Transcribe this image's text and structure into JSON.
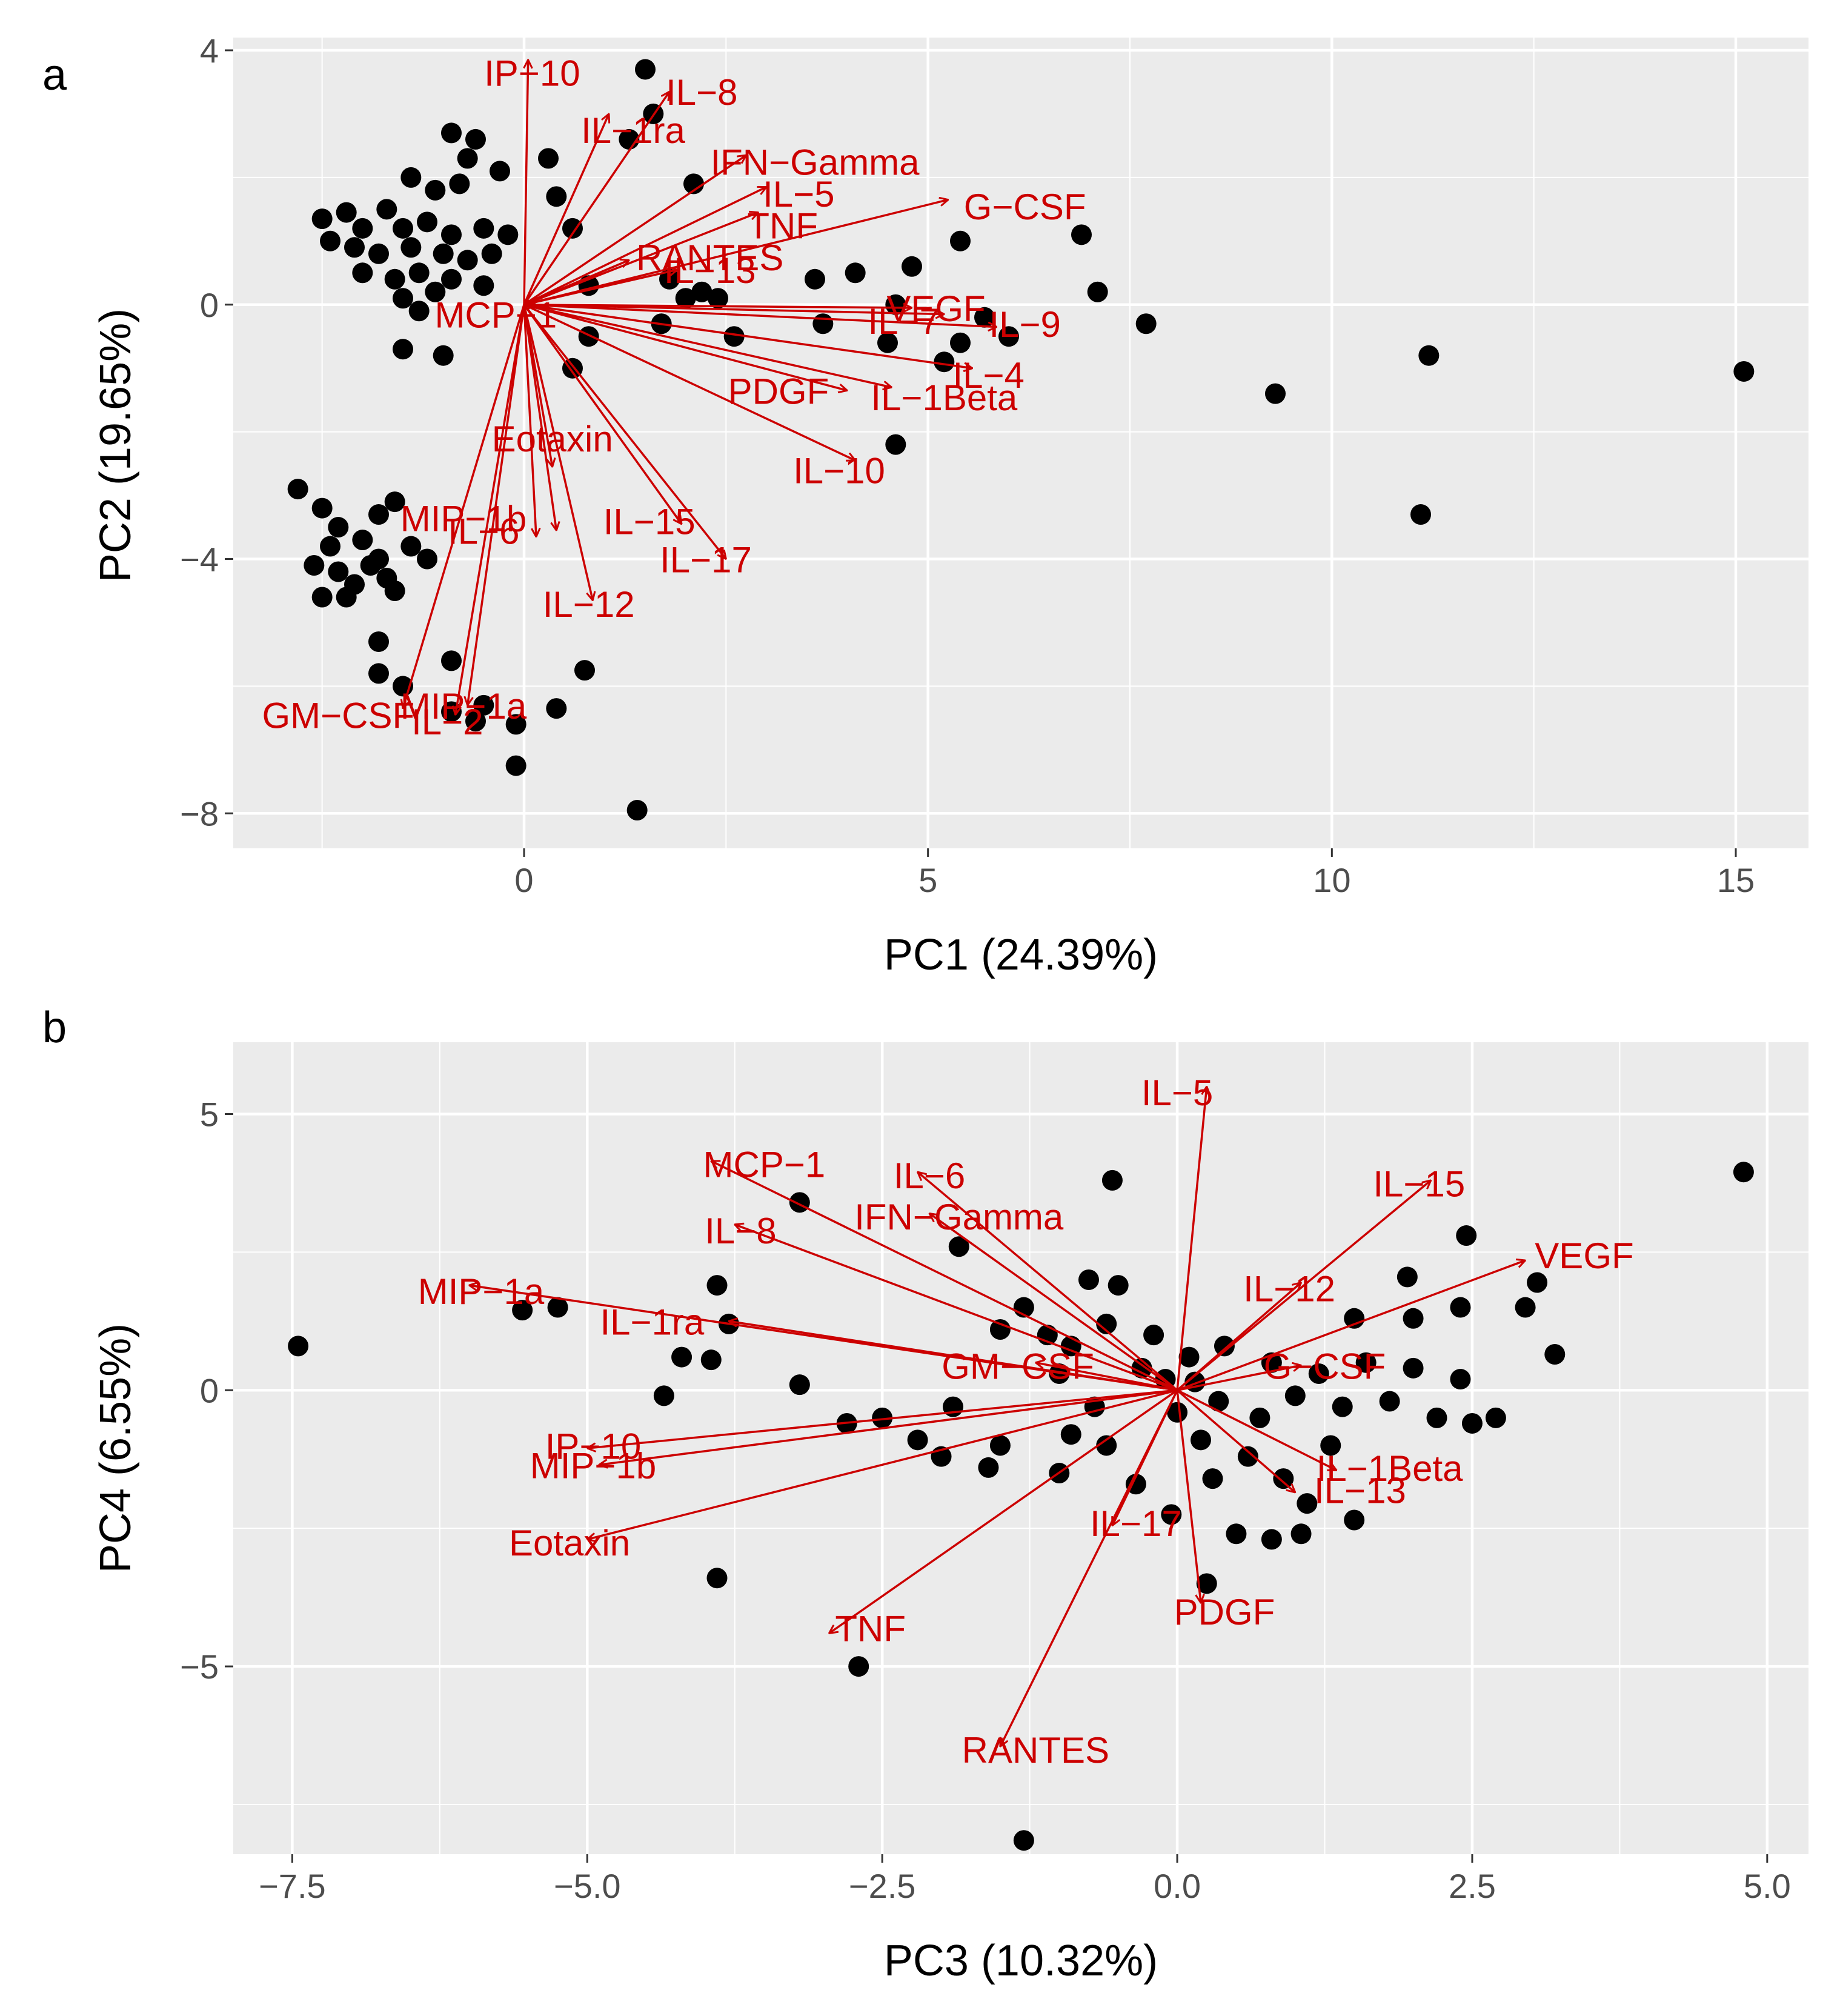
{
  "chart_data": [
    {
      "panel_label": "a",
      "type": "scatter",
      "subtype": "biplot",
      "xlabel": "PC1 (24.39%)",
      "ylabel": "PC2 (19.65%)",
      "xlim": [
        -3.6,
        15.9
      ],
      "ylim": [
        -8.55,
        4.2
      ],
      "xticks": [
        0,
        5,
        10,
        15
      ],
      "yticks": [
        -8,
        -4,
        0,
        4
      ],
      "xtick_labels": [
        "0",
        "5",
        "10",
        "15"
      ],
      "ytick_labels": [
        "−8",
        "−4",
        "0",
        "4"
      ],
      "grid": true,
      "loadings_origin": [
        0,
        0
      ],
      "points": [
        [
          1.5,
          3.7
        ],
        [
          1.6,
          3.0
        ],
        [
          1.3,
          2.6
        ],
        [
          -0.9,
          2.7
        ],
        [
          -0.6,
          2.6
        ],
        [
          -0.7,
          2.3
        ],
        [
          0.3,
          2.3
        ],
        [
          -0.3,
          2.1
        ],
        [
          2.1,
          1.9
        ],
        [
          -1.4,
          2.0
        ],
        [
          -1.1,
          1.8
        ],
        [
          -0.8,
          1.9
        ],
        [
          0.4,
          1.7
        ],
        [
          -2.5,
          1.35
        ],
        [
          -2.2,
          1.45
        ],
        [
          -2.0,
          1.2
        ],
        [
          -1.7,
          1.5
        ],
        [
          -1.5,
          1.2
        ],
        [
          -1.2,
          1.3
        ],
        [
          -0.9,
          1.1
        ],
        [
          -0.5,
          1.2
        ],
        [
          -0.2,
          1.1
        ],
        [
          0.6,
          1.2
        ],
        [
          -2.4,
          1.0
        ],
        [
          -2.1,
          0.9
        ],
        [
          -1.8,
          0.8
        ],
        [
          -1.4,
          0.9
        ],
        [
          -1.0,
          0.8
        ],
        [
          -0.7,
          0.7
        ],
        [
          -0.4,
          0.8
        ],
        [
          -2.0,
          0.5
        ],
        [
          -1.6,
          0.4
        ],
        [
          -1.3,
          0.5
        ],
        [
          -0.9,
          0.4
        ],
        [
          -0.5,
          0.3
        ],
        [
          -1.5,
          0.1
        ],
        [
          -1.1,
          0.2
        ],
        [
          -1.3,
          -0.1
        ],
        [
          0.8,
          0.3
        ],
        [
          1.8,
          0.4
        ],
        [
          2.2,
          0.2
        ],
        [
          3.6,
          0.4
        ],
        [
          4.1,
          0.5
        ],
        [
          4.8,
          0.6
        ],
        [
          5.4,
          1.0
        ],
        [
          6.9,
          1.1
        ],
        [
          7.1,
          0.2
        ],
        [
          7.7,
          -0.3
        ],
        [
          2.0,
          0.1
        ],
        [
          2.4,
          0.1
        ],
        [
          4.6,
          0.0
        ],
        [
          5.7,
          -0.2
        ],
        [
          2.6,
          -0.5
        ],
        [
          3.7,
          -0.3
        ],
        [
          4.5,
          -0.6
        ],
        [
          5.4,
          -0.6
        ],
        [
          6.0,
          -0.5
        ],
        [
          5.2,
          -0.9
        ],
        [
          1.7,
          -0.3
        ],
        [
          4.6,
          -2.2
        ],
        [
          -1.5,
          -0.7
        ],
        [
          -1.0,
          -0.8
        ],
        [
          0.8,
          -0.5
        ],
        [
          0.6,
          -1.0
        ],
        [
          11.2,
          -0.8
        ],
        [
          9.3,
          -1.4
        ],
        [
          15.1,
          -1.05
        ],
        [
          11.1,
          -3.3
        ],
        [
          -2.8,
          -2.9
        ],
        [
          -2.5,
          -3.2
        ],
        [
          -2.3,
          -3.5
        ],
        [
          -1.8,
          -3.3
        ],
        [
          -1.6,
          -3.1
        ],
        [
          -2.4,
          -3.8
        ],
        [
          -2.0,
          -3.7
        ],
        [
          -1.8,
          -4.0
        ],
        [
          -1.4,
          -3.8
        ],
        [
          -1.2,
          -4.0
        ],
        [
          -2.6,
          -4.1
        ],
        [
          -2.3,
          -4.2
        ],
        [
          -1.9,
          -4.1
        ],
        [
          -1.7,
          -4.3
        ],
        [
          -1.6,
          -4.5
        ],
        [
          -2.5,
          -4.6
        ],
        [
          -2.2,
          -4.6
        ],
        [
          -2.1,
          -4.4
        ],
        [
          -1.8,
          -5.3
        ],
        [
          -0.9,
          -5.6
        ],
        [
          -1.8,
          -5.8
        ],
        [
          -1.5,
          -6.0
        ],
        [
          0.75,
          -5.75
        ],
        [
          -0.5,
          -6.3
        ],
        [
          -0.6,
          -6.55
        ],
        [
          -0.9,
          -6.4
        ],
        [
          0.4,
          -6.35
        ],
        [
          -0.1,
          -6.6
        ],
        [
          -0.1,
          -7.25
        ],
        [
          1.4,
          -7.95
        ]
      ],
      "loadings": [
        {
          "label": "IP−10",
          "x": 0.05,
          "y": 3.85
        },
        {
          "label": "IL−8",
          "x": 1.8,
          "y": 3.35
        },
        {
          "label": "IL−1ra",
          "x": 1.05,
          "y": 3.0
        },
        {
          "label": "IFN−Gamma",
          "x": 2.75,
          "y": 2.35
        },
        {
          "label": "IL−5",
          "x": 3.0,
          "y": 1.85
        },
        {
          "label": "G−CSF",
          "x": 5.25,
          "y": 1.65
        },
        {
          "label": "TNF",
          "x": 2.9,
          "y": 1.45
        },
        {
          "label": "RANTES",
          "x": 1.3,
          "y": 0.7
        },
        {
          "label": "IL−13",
          "x": 1.9,
          "y": 0.55
        },
        {
          "label": "MCP−1",
          "x": 0.15,
          "y": 0.0
        },
        {
          "label": "VEGF",
          "x": 4.8,
          "y": -0.05
        },
        {
          "label": "IL−7",
          "x": 5.2,
          "y": -0.15
        },
        {
          "label": "IL−9",
          "x": 5.85,
          "y": -0.35
        },
        {
          "label": "IL−4",
          "x": 5.55,
          "y": -1.0
        },
        {
          "label": "IL−1Beta",
          "x": 4.55,
          "y": -1.3
        },
        {
          "label": "PDGF",
          "x": 4.0,
          "y": -1.35
        },
        {
          "label": "IL−10",
          "x": 4.1,
          "y": -2.45
        },
        {
          "label": "Eotaxin",
          "x": 0.35,
          "y": -2.55
        },
        {
          "label": "MIP−1b",
          "x": 0.4,
          "y": -3.55
        },
        {
          "label": "IL−6",
          "x": 0.15,
          "y": -3.65
        },
        {
          "label": "IL−15",
          "x": 1.95,
          "y": -3.45
        },
        {
          "label": "IL−17",
          "x": 2.5,
          "y": -4.0
        },
        {
          "label": "IL−12",
          "x": 0.85,
          "y": -4.65
        },
        {
          "label": "GM−CSF",
          "x": -1.5,
          "y": -6.35
        },
        {
          "label": "MIP−1a",
          "x": -0.7,
          "y": -6.3
        },
        {
          "label": "IL−2",
          "x": -0.85,
          "y": -6.45
        }
      ],
      "loading_label_positions": [
        [
          0.1,
          3.65
        ],
        [
          2.2,
          3.35
        ],
        [
          1.35,
          2.75
        ],
        [
          3.6,
          2.25
        ],
        [
          3.4,
          1.75
        ],
        [
          6.2,
          1.55
        ],
        [
          3.2,
          1.25
        ],
        [
          2.3,
          0.75
        ],
        [
          2.3,
          0.55
        ],
        [
          -0.35,
          -0.15
        ],
        [
          5.1,
          -0.05
        ],
        [
          4.7,
          -0.25
        ],
        [
          6.2,
          -0.3
        ],
        [
          5.75,
          -1.1
        ],
        [
          5.2,
          -1.45
        ],
        [
          3.15,
          -1.35
        ],
        [
          3.9,
          -2.6
        ],
        [
          0.35,
          -2.1
        ],
        [
          -0.75,
          -3.35
        ],
        [
          -0.5,
          -3.55
        ],
        [
          1.55,
          -3.4
        ],
        [
          2.25,
          -4.0
        ],
        [
          0.8,
          -4.7
        ],
        [
          -2.3,
          -6.45
        ],
        [
          -0.75,
          -6.3
        ],
        [
          -0.95,
          -6.55
        ]
      ]
    },
    {
      "panel_label": "b",
      "type": "scatter",
      "subtype": "biplot",
      "xlabel": "PC3 (10.32%)",
      "ylabel": "PC4 (6.55%)",
      "xlim": [
        -8.0,
        5.35
      ],
      "ylim": [
        -8.4,
        6.3
      ],
      "xticks": [
        -7.5,
        -5.0,
        -2.5,
        0.0,
        2.5,
        5.0
      ],
      "yticks": [
        -5,
        0,
        5
      ],
      "xtick_labels": [
        "−7.5",
        "−5.0",
        "−2.5",
        "0.0",
        "2.5",
        "5.0"
      ],
      "ytick_labels": [
        "−5",
        "0",
        "5"
      ],
      "grid": true,
      "loadings_origin": [
        0,
        0
      ],
      "points": [
        [
          -7.45,
          0.8
        ],
        [
          -5.55,
          1.45
        ],
        [
          -5.25,
          1.5
        ],
        [
          -4.35,
          -0.1
        ],
        [
          -3.9,
          1.9
        ],
        [
          -3.8,
          1.2
        ],
        [
          -3.95,
          0.55
        ],
        [
          -3.2,
          0.1
        ],
        [
          -3.9,
          -3.4
        ],
        [
          -4.2,
          0.6
        ],
        [
          -3.2,
          3.4
        ],
        [
          -2.7,
          -5.0
        ],
        [
          -1.3,
          -8.15
        ],
        [
          -0.55,
          3.8
        ],
        [
          -1.85,
          2.6
        ],
        [
          -0.75,
          2.0
        ],
        [
          -0.5,
          1.9
        ],
        [
          -1.3,
          1.5
        ],
        [
          -1.5,
          1.1
        ],
        [
          -1.1,
          1.0
        ],
        [
          -0.9,
          0.8
        ],
        [
          -0.6,
          1.2
        ],
        [
          -0.2,
          1.0
        ],
        [
          0.1,
          0.6
        ],
        [
          0.4,
          0.8
        ],
        [
          0.8,
          0.5
        ],
        [
          1.2,
          0.3
        ],
        [
          1.6,
          0.5
        ],
        [
          2.0,
          0.4
        ],
        [
          2.4,
          0.2
        ],
        [
          1.0,
          -0.1
        ],
        [
          1.4,
          -0.3
        ],
        [
          1.8,
          -0.2
        ],
        [
          2.2,
          -0.5
        ],
        [
          2.5,
          -0.6
        ],
        [
          2.7,
          -0.5
        ],
        [
          3.2,
          0.65
        ],
        [
          3.05,
          1.95
        ],
        [
          2.95,
          1.5
        ],
        [
          2.45,
          2.8
        ],
        [
          4.8,
          3.95
        ],
        [
          1.5,
          1.3
        ],
        [
          1.95,
          2.05
        ],
        [
          2.0,
          1.3
        ],
        [
          2.4,
          1.5
        ],
        [
          -0.6,
          -1.0
        ],
        [
          -0.35,
          -1.7
        ],
        [
          0.0,
          -0.4
        ],
        [
          0.2,
          -0.9
        ],
        [
          0.6,
          -1.2
        ],
        [
          0.9,
          -1.6
        ],
        [
          1.1,
          -2.05
        ],
        [
          1.5,
          -2.35
        ],
        [
          0.5,
          -2.6
        ],
        [
          -0.05,
          -2.25
        ],
        [
          0.25,
          -3.5
        ],
        [
          -1.0,
          -1.5
        ],
        [
          -1.5,
          -1.0
        ],
        [
          -2.2,
          -0.9
        ],
        [
          -2.5,
          -0.5
        ],
        [
          -2.8,
          -0.6
        ],
        [
          -2.0,
          -1.2
        ],
        [
          -1.6,
          -1.4
        ],
        [
          -0.9,
          -0.8
        ],
        [
          0.8,
          -2.7
        ],
        [
          1.05,
          -2.6
        ],
        [
          0.3,
          -1.6
        ],
        [
          0.7,
          -0.5
        ],
        [
          1.3,
          -1.0
        ],
        [
          -0.3,
          0.4
        ],
        [
          -0.1,
          0.2
        ],
        [
          0.15,
          0.15
        ],
        [
          0.35,
          -0.2
        ],
        [
          -0.7,
          -0.3
        ],
        [
          -1.9,
          -0.3
        ],
        [
          -1.0,
          0.3
        ]
      ],
      "loadings": [
        {
          "label": "IL−5",
          "x": 0.25,
          "y": 5.5
        },
        {
          "label": "IL−15",
          "x": 2.15,
          "y": 3.8
        },
        {
          "label": "VEGF",
          "x": 2.95,
          "y": 2.35
        },
        {
          "label": "MCP−1",
          "x": -3.95,
          "y": 4.15
        },
        {
          "label": "IL−6",
          "x": -2.2,
          "y": 3.95
        },
        {
          "label": "IFN−Gamma",
          "x": -2.1,
          "y": 3.2
        },
        {
          "label": "IL−8",
          "x": -3.75,
          "y": 3.0
        },
        {
          "label": "MIP−1a",
          "x": -6.0,
          "y": 1.9
        },
        {
          "label": "IL−1ra",
          "x": -3.8,
          "y": 1.25
        },
        {
          "label": "IL−12",
          "x": 1.05,
          "y": 1.95
        },
        {
          "label": "G−CSF",
          "x": 1.05,
          "y": 0.45
        },
        {
          "label": "GM−CSF",
          "x": -1.2,
          "y": 0.5
        },
        {
          "label": "IP−10",
          "x": -5.0,
          "y": -1.05
        },
        {
          "label": "MIP−1b",
          "x": -4.9,
          "y": -1.35
        },
        {
          "label": "Eotaxin",
          "x": -5.0,
          "y": -2.7
        },
        {
          "label": "IL−1Beta",
          "x": 1.35,
          "y": -1.45
        },
        {
          "label": "IL−13",
          "x": 1.0,
          "y": -1.85
        },
        {
          "label": "IL−17",
          "x": -0.55,
          "y": -2.45
        },
        {
          "label": "PDGF",
          "x": 0.2,
          "y": -3.85
        },
        {
          "label": "TNF",
          "x": -2.95,
          "y": -4.4
        },
        {
          "label": "RANTES",
          "x": -1.5,
          "y": -6.45
        }
      ],
      "loading_label_positions": [
        [
          0.0,
          5.4
        ],
        [
          2.05,
          3.75
        ],
        [
          3.45,
          2.45
        ],
        [
          -3.5,
          4.1
        ],
        [
          -2.1,
          3.9
        ],
        [
          -1.85,
          3.15
        ],
        [
          -3.7,
          2.9
        ],
        [
          -5.9,
          1.8
        ],
        [
          -4.45,
          1.25
        ],
        [
          0.95,
          1.85
        ],
        [
          1.25,
          0.45
        ],
        [
          -1.35,
          0.45
        ],
        [
          -4.95,
          -1.0
        ],
        [
          -4.95,
          -1.35
        ],
        [
          -5.15,
          -2.75
        ],
        [
          1.8,
          -1.4
        ],
        [
          1.55,
          -1.8
        ],
        [
          -0.35,
          -2.4
        ],
        [
          0.4,
          -4.0
        ],
        [
          -2.6,
          -4.3
        ],
        [
          -1.2,
          -6.5
        ]
      ]
    }
  ]
}
